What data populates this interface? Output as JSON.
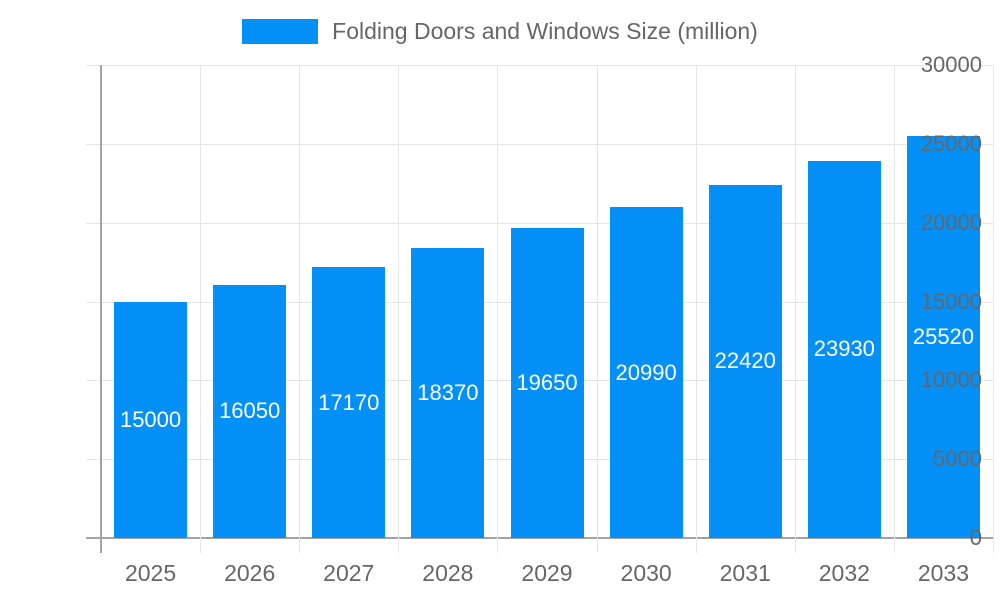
{
  "chart_data": {
    "type": "bar",
    "title": "",
    "legend_label": "Folding Doors and Windows Size (million)",
    "legend_position": "top",
    "categories": [
      "2025",
      "2026",
      "2027",
      "2028",
      "2029",
      "2030",
      "2031",
      "2032",
      "2033"
    ],
    "values": [
      15000,
      16050,
      17170,
      18370,
      19650,
      20990,
      22420,
      23930,
      25520
    ],
    "value_labels": [
      "15000",
      "16050",
      "17170",
      "18370",
      "19650",
      "20990",
      "22420",
      "23930",
      "25520"
    ],
    "xlabel": "",
    "ylabel": "",
    "ylim": [
      0,
      30000
    ],
    "yticks": [
      0,
      5000,
      10000,
      15000,
      20000,
      25000,
      30000
    ],
    "ytick_labels": [
      "0",
      "5000",
      "10000",
      "15000",
      "20000",
      "25000",
      "30000"
    ],
    "grid": true,
    "colors": {
      "bar_fill": "#0590f8",
      "axis_line": "#a3a3a3",
      "grid_line": "#e6e6e6",
      "tick_text": "#666666",
      "legend_text": "#666666",
      "bar_value_text": "#ffffff",
      "background": "#ffffff"
    }
  }
}
